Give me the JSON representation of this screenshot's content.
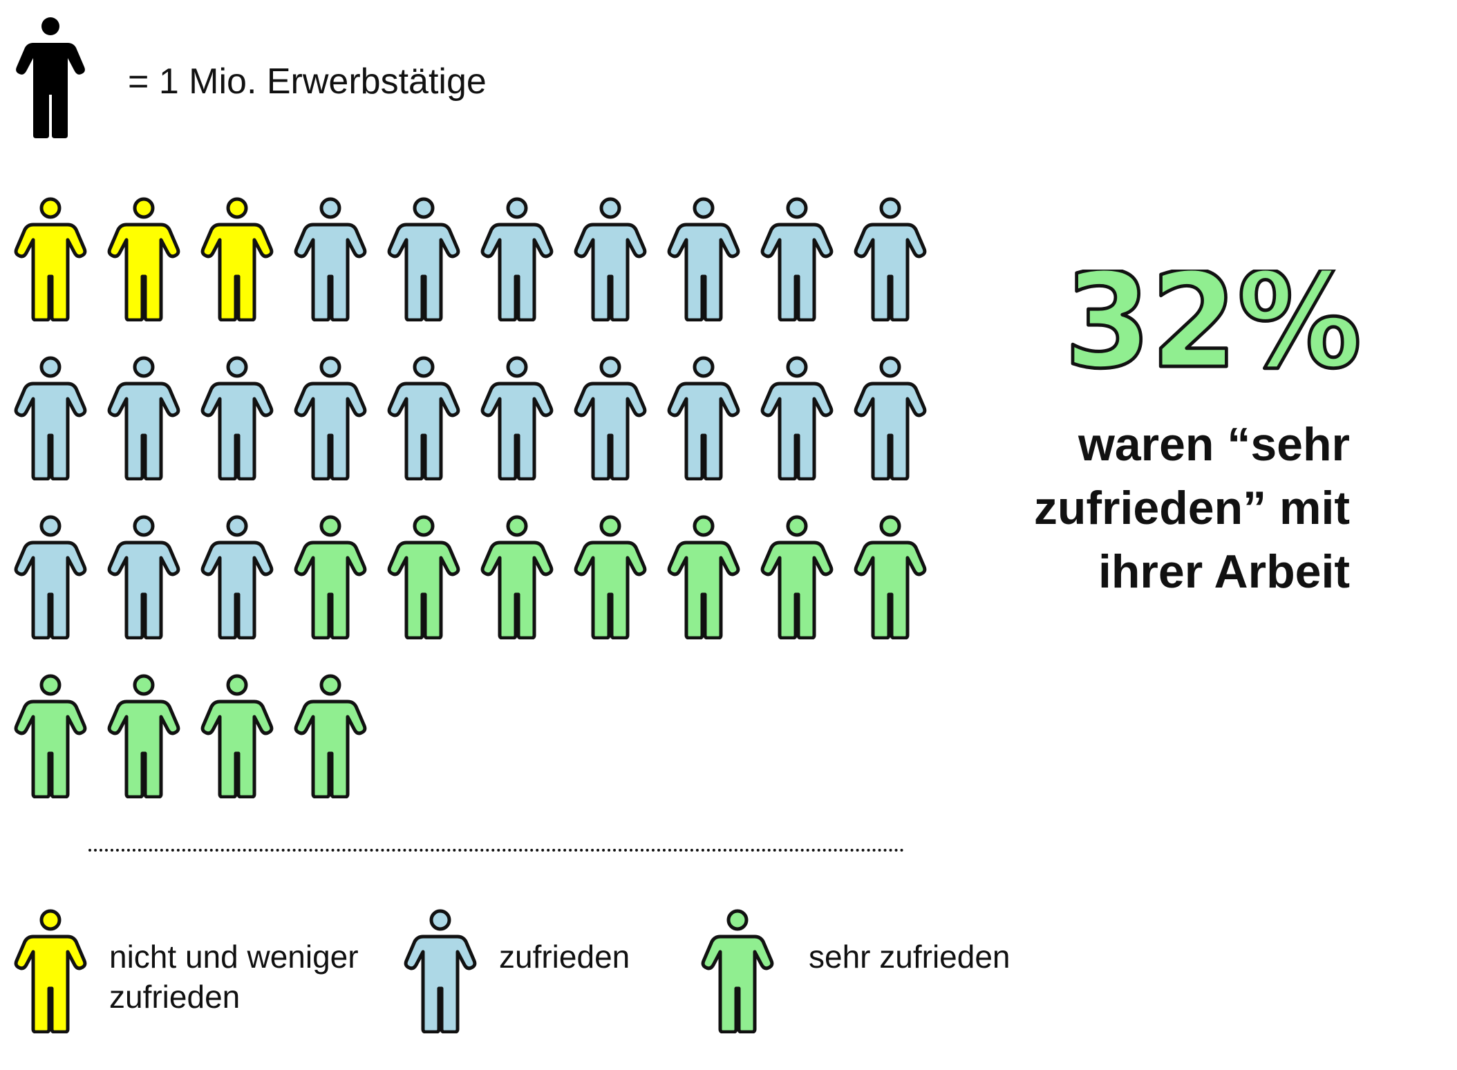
{
  "scale": {
    "label": "= 1 Mio. Erwerbstätige",
    "icon": "person-icon",
    "color": "#000000"
  },
  "headline": {
    "percent": "32%",
    "line1": "waren “sehr",
    "line2": "zufrieden” mit",
    "line3": "ihrer Arbeit"
  },
  "chart_data": {
    "type": "pictogram",
    "unit": "= 1 Mio. Erwerbstätige",
    "icons_per_row": 10,
    "categories": [
      "nicht und weniger zufrieden",
      "zufrieden",
      "sehr zufrieden"
    ],
    "values": [
      3,
      20,
      11
    ],
    "colors": [
      "#ffff00",
      "#add8e6",
      "#90ee90"
    ],
    "highlight_percent": "32%"
  },
  "legend": [
    {
      "label": "nicht und weniger\nzufrieden",
      "color": "#ffff00"
    },
    {
      "label": "zufrieden",
      "color": "#add8e6"
    },
    {
      "label": "sehr zufrieden",
      "color": "#90ee90"
    }
  ],
  "colors": {
    "outline": "#111111",
    "percent_fill": "#90ee90"
  }
}
